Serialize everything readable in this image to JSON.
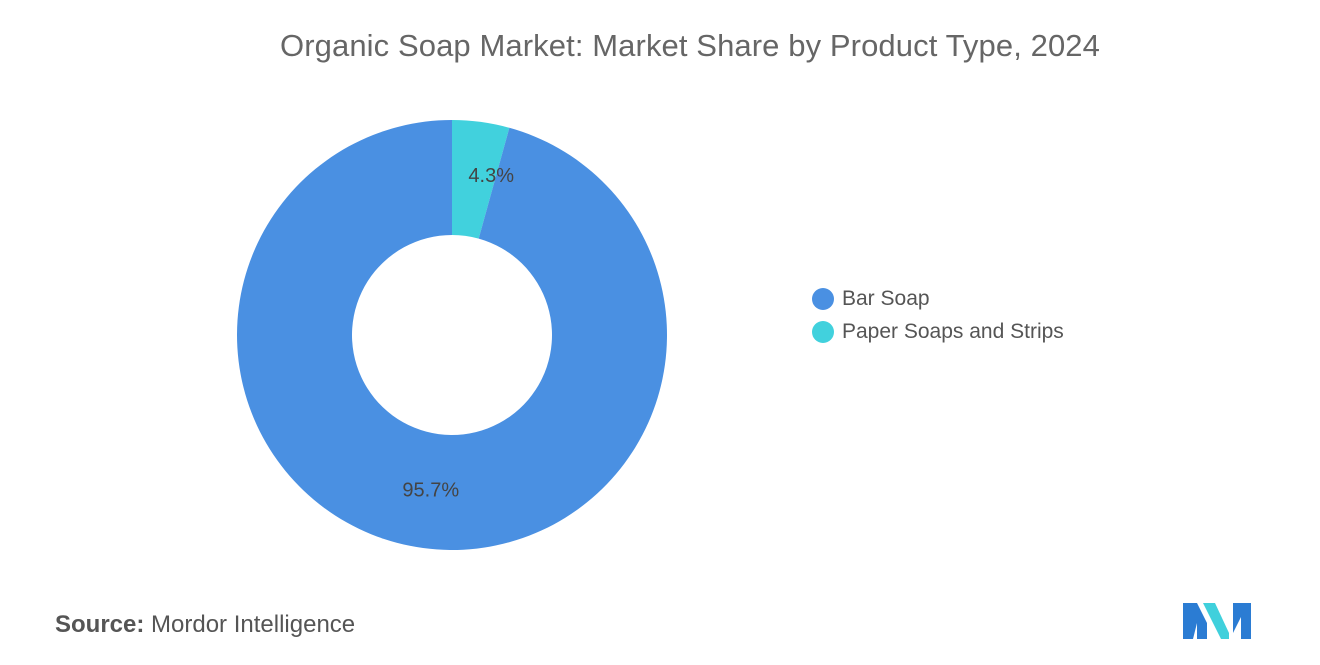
{
  "title": "Organic Soap Market: Market Share by Product Type, 2024",
  "chart_data": {
    "type": "pie",
    "donut": true,
    "title": "Organic Soap Market: Market Share by Product Type, 2024",
    "categories": [
      "Bar Soap",
      "Paper Soaps and Strips"
    ],
    "values": [
      95.7,
      4.3
    ],
    "data_labels": [
      "95.7%",
      "4.3%"
    ],
    "colors": [
      "#4A90E2",
      "#41D1DD"
    ],
    "legend_position": "right"
  },
  "legend": {
    "items": [
      {
        "label": "Bar Soap",
        "color": "#4A90E2"
      },
      {
        "label": "Paper Soaps and Strips",
        "color": "#41D1DD"
      }
    ]
  },
  "source": {
    "label": "Source:",
    "text": "Mordor Intelligence"
  },
  "logo": {
    "icon": "mordor-intelligence-logo",
    "colors": [
      "#2B7CD3",
      "#40D0DC"
    ]
  }
}
